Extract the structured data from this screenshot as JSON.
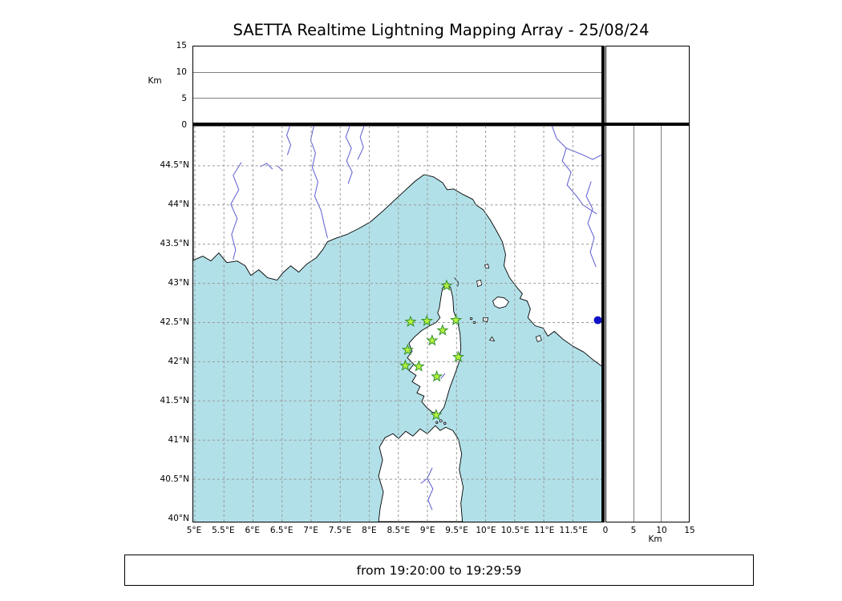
{
  "title": "SAETTA Realtime Lightning Mapping Array - 25/08/24",
  "footer": {
    "time_range": "from 19:20:00 to 19:29:59"
  },
  "axes": {
    "km_label": "Km",
    "lon_tick_labels": [
      "5°E",
      "5.5°E",
      "6°E",
      "6.5°E",
      "7°E",
      "7.5°E",
      "8°E",
      "8.5°E",
      "9°E",
      "9.5°E",
      "10°E",
      "10.5°E",
      "11°E",
      "11.5°E"
    ],
    "lat_tick_labels": [
      "40°N",
      "40.5°N",
      "41°N",
      "41.5°N",
      "42°N",
      "42.5°N",
      "43°N",
      "43.5°N",
      "44°N",
      "44.5°N"
    ],
    "alt_tick_labels": [
      "0",
      "5",
      "10",
      "15"
    ]
  },
  "colors": {
    "sea": "#b2e0e8",
    "land": "#ffffff",
    "coast": "#000000",
    "river": "#5a5ad2",
    "grid": "#999999",
    "station_fill": "#b5f23d",
    "station_stroke": "#2f8f2f",
    "detection_dot": "#1012c8"
  },
  "chart_data": {
    "type": "scatter",
    "title": "SAETTA Realtime Lightning Mapping Array - 25/08/24",
    "time_window": {
      "from": "19:20:00",
      "to": "19:29:59"
    },
    "map_panel": {
      "xlim_deg_e": [
        5,
        12
      ],
      "ylim_deg_n": [
        40,
        45
      ],
      "grid_interval_deg": 0.5,
      "grid_style": "dashed",
      "region": "Corsica / NW Mediterranean"
    },
    "altitude_panels": {
      "range_km": [
        0,
        15
      ],
      "tick_step_km": 5,
      "gridlines_km": [
        5,
        10
      ],
      "unit": "Km",
      "lightning_sources_plotted": 0
    },
    "stations_lon_lat": [
      [
        9.33,
        42.97
      ],
      [
        8.71,
        42.51
      ],
      [
        8.99,
        42.52
      ],
      [
        9.49,
        42.53
      ],
      [
        9.26,
        42.4
      ],
      [
        9.08,
        42.27
      ],
      [
        8.66,
        42.15
      ],
      [
        9.53,
        42.06
      ],
      [
        8.62,
        41.95
      ],
      [
        8.85,
        41.94
      ],
      [
        9.16,
        41.81
      ],
      [
        9.15,
        41.32
      ]
    ],
    "marker_points": [
      {
        "lon": 11.93,
        "lat": 42.53,
        "color": "#1012c8",
        "shape": "circle"
      }
    ]
  }
}
